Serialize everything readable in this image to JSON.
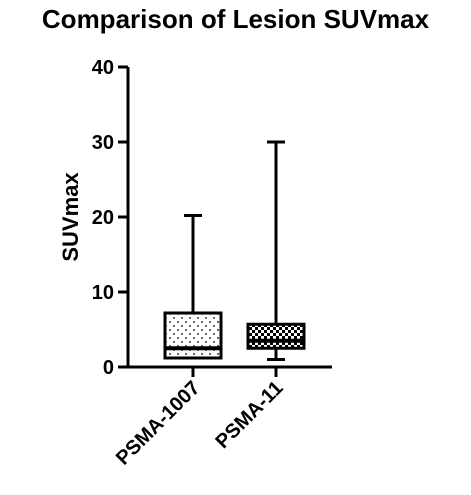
{
  "chart_data": {
    "type": "box",
    "title": "Comparison of Lesion SUVmax",
    "xlabel": "",
    "ylabel": "SUVmax",
    "ylim": [
      0,
      40
    ],
    "yticks": [
      0,
      10,
      20,
      30,
      40
    ],
    "grid": false,
    "categories": [
      "PSMA-1007",
      "PSMA-11"
    ],
    "boxes": [
      {
        "category": "PSMA-1007",
        "min": 1.2,
        "q1": 1.2,
        "median": 2.5,
        "q3": 7.2,
        "max": 20.2,
        "fill_pattern": "dots"
      },
      {
        "category": "PSMA-11",
        "min": 1.0,
        "q1": 2.5,
        "median": 3.5,
        "q3": 5.7,
        "max": 30.0,
        "fill_pattern": "checker"
      }
    ]
  }
}
